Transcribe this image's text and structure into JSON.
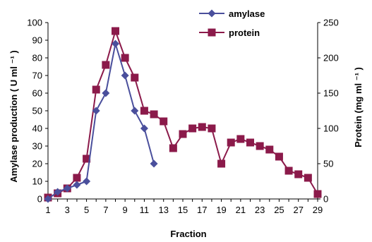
{
  "chart_data": {
    "type": "line",
    "xlabel": "Fraction",
    "ylabel_left": "Amylase production ( U ml ⁻¹ )",
    "ylabel_right": "Protein (mg ml ⁻¹ )",
    "x_ticks": [
      1,
      3,
      5,
      7,
      9,
      11,
      13,
      15,
      17,
      19,
      21,
      23,
      25,
      27,
      29
    ],
    "xlim": [
      1,
      29
    ],
    "ylim_left": [
      0,
      100
    ],
    "ylim_right": [
      0,
      250
    ],
    "y_ticks_left": [
      0,
      10,
      20,
      30,
      40,
      50,
      60,
      70,
      80,
      90,
      100
    ],
    "y_ticks_right": [
      0,
      50,
      100,
      150,
      200,
      250
    ],
    "grid": false,
    "legend_position": "top-center",
    "series": [
      {
        "name": "amylase",
        "axis": "left",
        "color": "#4a4f9c",
        "marker": "diamond",
        "x": [
          1,
          2,
          3,
          4,
          5,
          6,
          7,
          8,
          9,
          10,
          11,
          12
        ],
        "values": [
          0,
          4,
          6,
          8,
          10,
          50,
          60,
          88,
          70,
          50,
          40,
          20
        ]
      },
      {
        "name": "protein",
        "axis": "right",
        "color": "#8b1a4a",
        "marker": "square",
        "x": [
          1,
          2,
          3,
          4,
          5,
          6,
          7,
          8,
          9,
          10,
          11,
          12,
          13,
          14,
          15,
          16,
          17,
          18,
          19,
          20,
          21,
          22,
          23,
          24,
          25,
          26,
          27,
          28,
          29
        ],
        "values": [
          2,
          8,
          15,
          30,
          57,
          155,
          190,
          238,
          200,
          172,
          125,
          120,
          110,
          72,
          92,
          100,
          102,
          100,
          50,
          80,
          85,
          80,
          75,
          70,
          60,
          40,
          35,
          30,
          7
        ]
      }
    ]
  }
}
